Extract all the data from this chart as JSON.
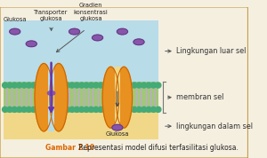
{
  "bg_color": "#f5efe0",
  "border_color": "#c8a050",
  "sky_color": "#b8dce8",
  "membrane_color": "#a0c878",
  "inner_color": "#f0d888",
  "protein_color": "#e89020",
  "protein_edge": "#cc6600",
  "glucose_color": "#8855aa",
  "glucose_edge": "#553377",
  "tail_color": "#c0a8d0",
  "dot_color": "#44aa77",
  "arrow_purple": "#6633aa",
  "arrow_dark": "#444444",
  "label1": "Lingkungan luar sel",
  "label2": "membran sel",
  "label3": "lingkungan dalam sel",
  "label_color": "#333333",
  "label_fontsize": 5.8,
  "annot1": "Glukosa",
  "annot2": "Transporter\nglukosa",
  "annot3": "Gradien\nkonsentrasi\nglukosa",
  "annot4": "Glukosa",
  "annot_color": "#222222",
  "annot_fontsize": 4.8,
  "caption_prefix": "Gambar 2.10",
  "caption_prefix_color": "#dd6600",
  "caption_text": " Representasi model difusi terfasilitasi glukosa.",
  "caption_color": "#222222",
  "caption_fontsize": 5.5
}
